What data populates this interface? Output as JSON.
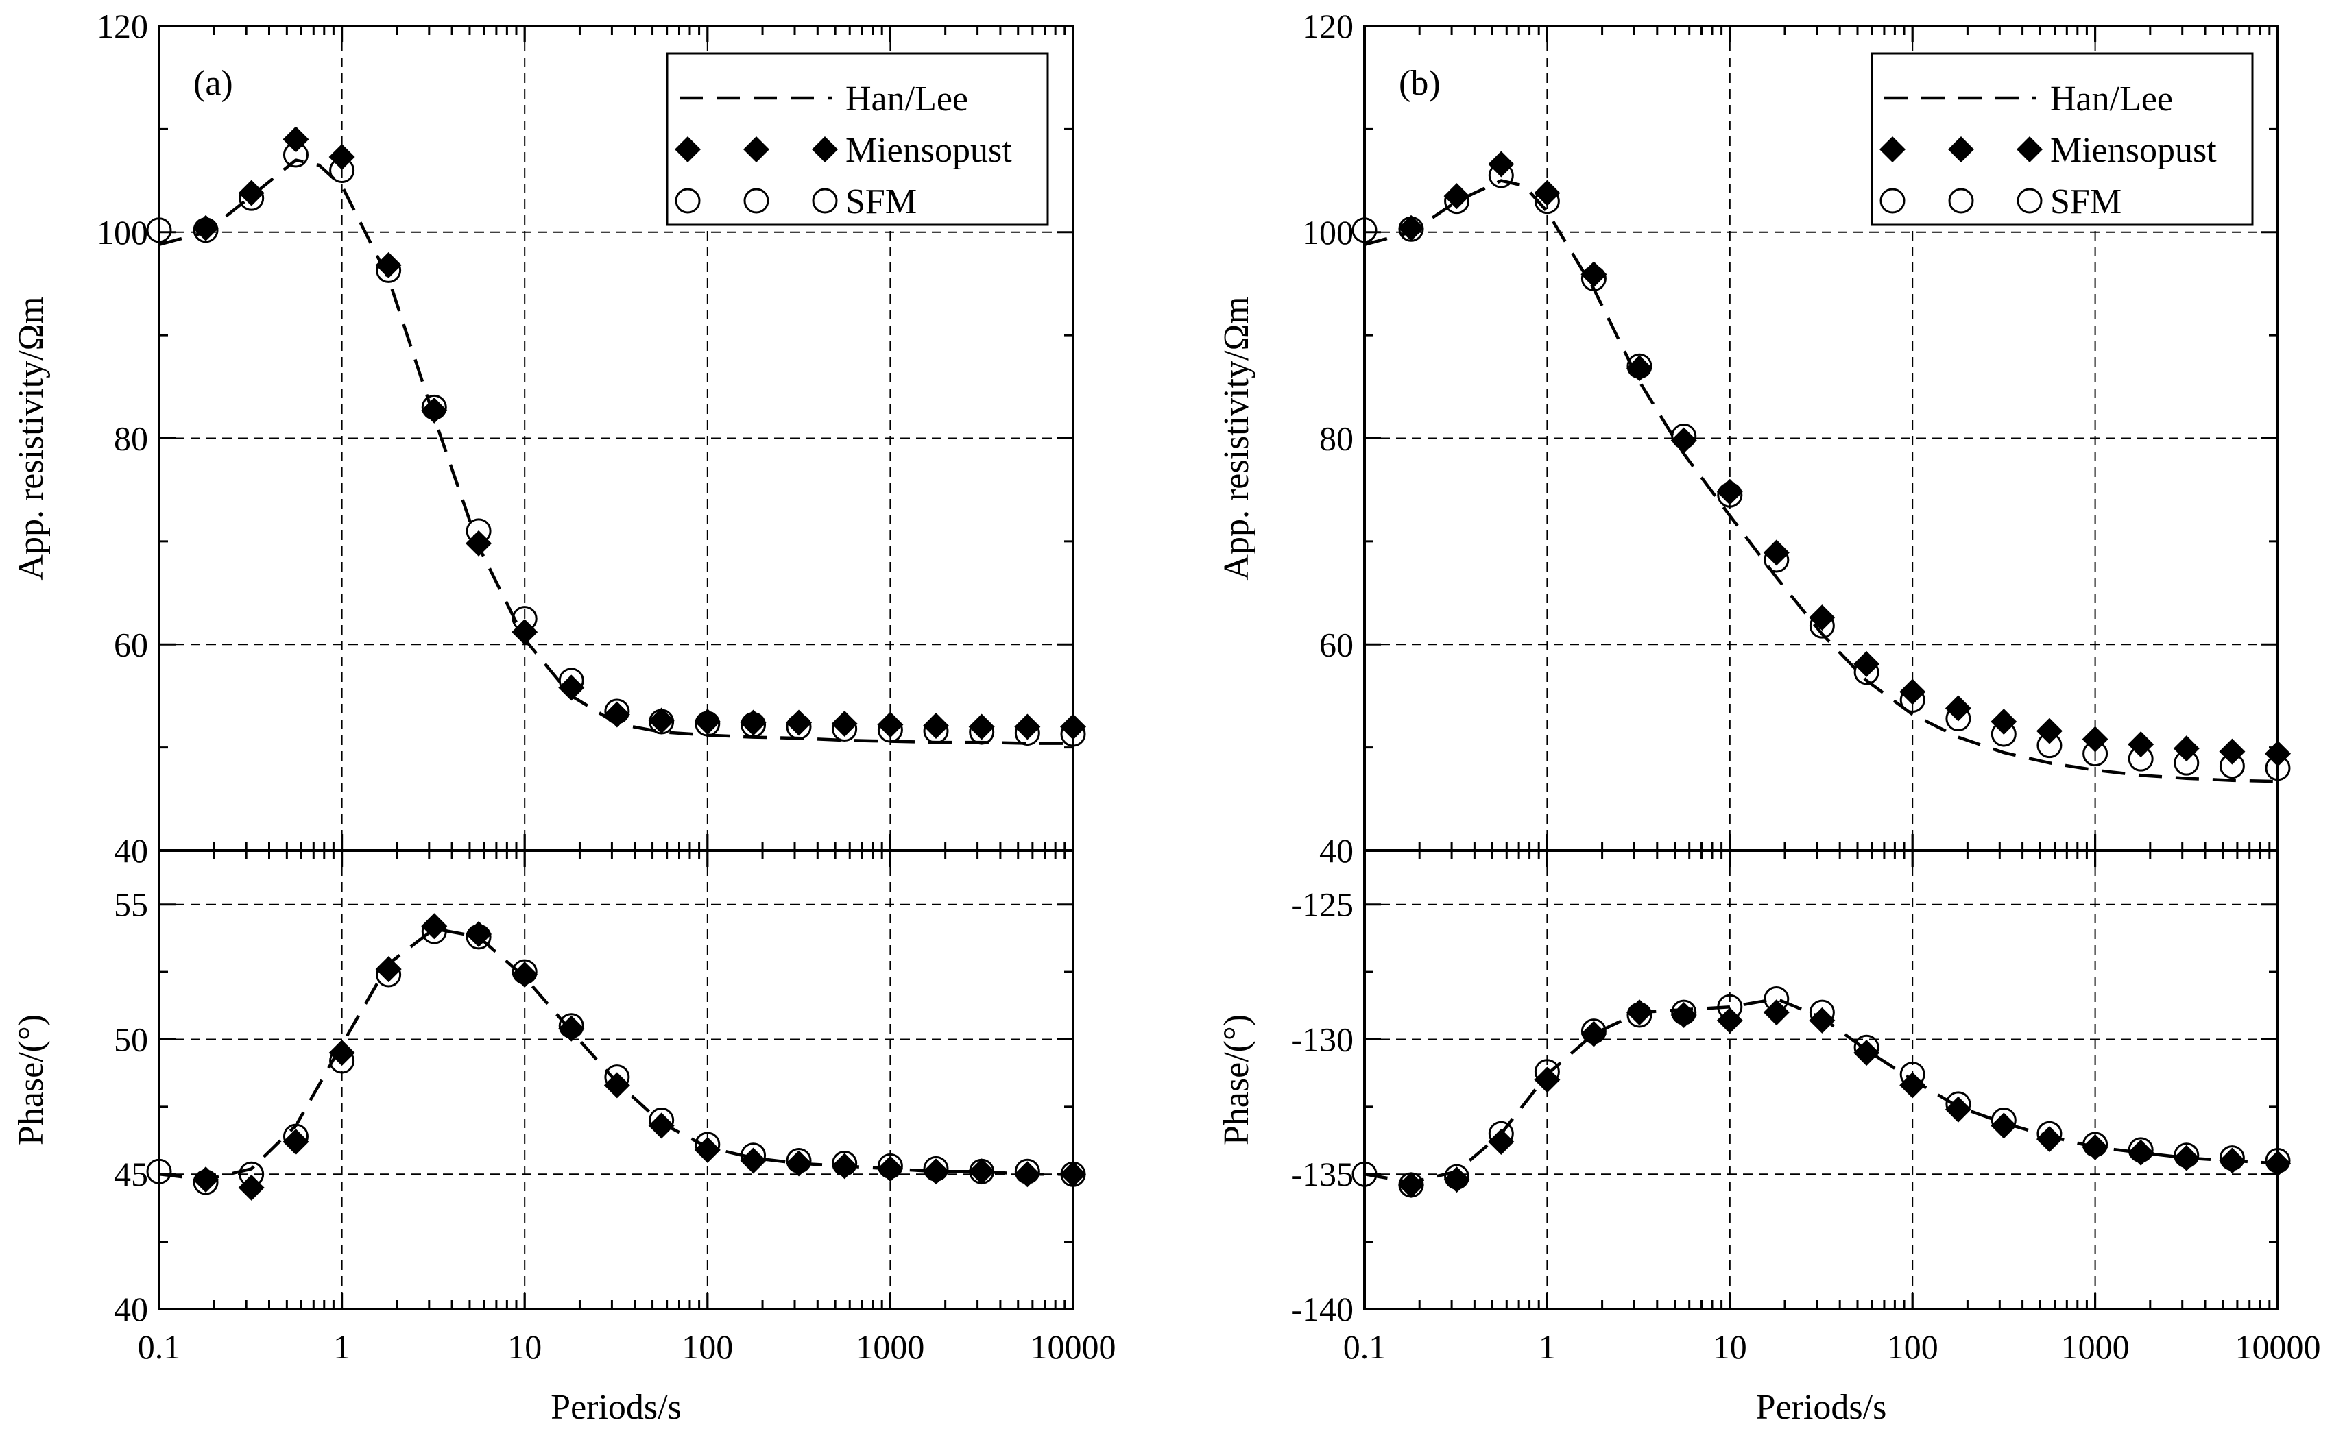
{
  "chart_data": [
    {
      "panel_label": "(a)",
      "type": "line",
      "x_scale": "log",
      "xlabel": "Periods/s",
      "x_tick_labels": [
        "0.1",
        "1",
        "10",
        "100",
        "1000",
        "10000"
      ],
      "x_tick_values": [
        0.1,
        1,
        10,
        100,
        1000,
        10000
      ],
      "xlim": [
        0.1,
        10000
      ],
      "legend": {
        "position": "top-right",
        "entries": [
          "Han/Lee",
          "Miensopust",
          "SFM"
        ]
      },
      "resistivity": {
        "ylabel": "App. resistivity/Ωm",
        "ylim": [
          40,
          120
        ],
        "y_tick_labels": [
          "40",
          "60",
          "80",
          "100",
          "120"
        ],
        "y_tick_values": [
          40,
          60,
          80,
          100,
          120
        ],
        "series": [
          {
            "name": "Han/Lee",
            "style": "dashed-line",
            "x": [
              0.1,
              0.18,
              0.32,
              0.56,
              0.75,
              1,
              1.8,
              3.2,
              5.6,
              10,
              18,
              32,
              56,
              100,
              178,
              316,
              562,
              1000,
              1778,
              3162,
              5623,
              10000
            ],
            "y": [
              98.8,
              100.0,
              103.5,
              107.0,
              106.5,
              104.5,
              95.5,
              82.0,
              69.5,
              60.5,
              55.0,
              52.3,
              51.5,
              51.2,
              51.0,
              50.9,
              50.7,
              50.6,
              50.5,
              50.5,
              50.4,
              50.4
            ]
          },
          {
            "name": "Miensopust",
            "style": "filled-diamond",
            "x": [
              0.18,
              0.32,
              0.56,
              1,
              1.8,
              3.2,
              5.6,
              10,
              18,
              32,
              56,
              100,
              178,
              316,
              562,
              1000,
              1778,
              3162,
              5623,
              10000
            ],
            "y": [
              100.4,
              103.8,
              109.0,
              107.3,
              96.8,
              82.7,
              69.8,
              61.2,
              55.8,
              53.2,
              52.6,
              52.5,
              52.4,
              52.4,
              52.3,
              52.2,
              52.1,
              52.0,
              52.0,
              52.0
            ]
          },
          {
            "name": "SFM",
            "style": "open-circle",
            "x": [
              0.1,
              0.18,
              0.32,
              0.56,
              1,
              1.8,
              3.2,
              5.6,
              10,
              18,
              32,
              56,
              100,
              178,
              316,
              562,
              1000,
              1778,
              3162,
              5623,
              10000
            ],
            "y": [
              100.2,
              100.2,
              103.3,
              107.5,
              106.0,
              96.3,
              83.0,
              71.0,
              62.5,
              56.5,
              53.5,
              52.5,
              52.3,
              52.2,
              52.0,
              51.8,
              51.7,
              51.6,
              51.5,
              51.4,
              51.3
            ]
          }
        ]
      },
      "phase": {
        "ylabel": "Phase/(°)",
        "ylim": [
          40,
          57
        ],
        "y_tick_labels": [
          "40",
          "45",
          "50",
          "55"
        ],
        "y_tick_values": [
          40,
          45,
          50,
          55
        ],
        "series": [
          {
            "name": "Han/Lee",
            "style": "dashed-line",
            "x": [
              0.1,
              0.18,
              0.32,
              0.56,
              1,
              1.8,
              3.2,
              5.6,
              10,
              18,
              32,
              56,
              100,
              178,
              316,
              562,
              1000,
              1778,
              3162,
              5623,
              10000
            ],
            "y": [
              45.0,
              44.8,
              45.2,
              46.8,
              49.8,
              52.8,
              54.1,
              53.8,
              52.3,
              50.3,
              48.4,
              46.9,
              46.0,
              45.6,
              45.4,
              45.3,
              45.2,
              45.1,
              45.1,
              45.0,
              45.0
            ]
          },
          {
            "name": "Miensopust",
            "style": "filled-diamond",
            "x": [
              0.18,
              0.32,
              0.56,
              1,
              1.8,
              3.2,
              5.6,
              10,
              18,
              32,
              56,
              100,
              178,
              316,
              562,
              1000,
              1778,
              3162,
              5623,
              10000
            ],
            "y": [
              44.8,
              44.5,
              46.2,
              49.5,
              52.6,
              54.2,
              53.9,
              52.4,
              50.4,
              48.3,
              46.8,
              45.9,
              45.5,
              45.4,
              45.3,
              45.2,
              45.1,
              45.1,
              45.0,
              45.0
            ]
          },
          {
            "name": "SFM",
            "style": "open-circle",
            "x": [
              0.1,
              0.18,
              0.32,
              0.56,
              1,
              1.8,
              3.2,
              5.6,
              10,
              18,
              32,
              56,
              100,
              178,
              316,
              562,
              1000,
              1778,
              3162,
              5623,
              10000
            ],
            "y": [
              45.1,
              44.7,
              45.0,
              46.4,
              49.2,
              52.4,
              54.0,
              53.8,
              52.5,
              50.5,
              48.6,
              47.0,
              46.1,
              45.7,
              45.5,
              45.4,
              45.3,
              45.2,
              45.1,
              45.1,
              45.0
            ]
          }
        ]
      }
    },
    {
      "panel_label": "(b)",
      "type": "line",
      "x_scale": "log",
      "xlabel": "Periods/s",
      "x_tick_labels": [
        "0.1",
        "1",
        "10",
        "100",
        "1000",
        "10000"
      ],
      "x_tick_values": [
        0.1,
        1,
        10,
        100,
        1000,
        10000
      ],
      "xlim": [
        0.1,
        10000
      ],
      "legend": {
        "position": "top-right",
        "entries": [
          "Han/Lee",
          "Miensopust",
          "SFM"
        ]
      },
      "resistivity": {
        "ylabel": "App. resistivity/Ωm",
        "ylim": [
          40,
          120
        ],
        "y_tick_labels": [
          "40",
          "60",
          "80",
          "100",
          "120"
        ],
        "y_tick_values": [
          40,
          60,
          80,
          100,
          120
        ],
        "series": [
          {
            "name": "Han/Lee",
            "style": "dashed-line",
            "x": [
              0.1,
              0.18,
              0.32,
              0.56,
              0.75,
              1,
              1.8,
              3.2,
              5.6,
              10,
              18,
              32,
              56,
              100,
              178,
              316,
              562,
              1000,
              1778,
              3162,
              5623,
              10000
            ],
            "y": [
              98.8,
              100.0,
              103.0,
              105.0,
              104.5,
              102.0,
              94.5,
              85.5,
              78.5,
              72.5,
              66.5,
              61.0,
              56.5,
              53.2,
              51.0,
              49.5,
              48.5,
              47.8,
              47.3,
              47.0,
              46.8,
              46.7
            ]
          },
          {
            "name": "Miensopust",
            "style": "filled-diamond",
            "x": [
              0.18,
              0.32,
              0.56,
              1,
              1.8,
              3.2,
              5.6,
              10,
              18,
              32,
              56,
              100,
              178,
              316,
              562,
              1000,
              1778,
              3162,
              5623,
              10000
            ],
            "y": [
              100.4,
              103.5,
              106.6,
              103.8,
              95.9,
              86.8,
              79.8,
              74.8,
              68.9,
              62.6,
              58.1,
              55.4,
              53.8,
              52.5,
              51.6,
              50.8,
              50.3,
              49.9,
              49.6,
              49.4
            ]
          },
          {
            "name": "SFM",
            "style": "open-circle",
            "x": [
              0.1,
              0.18,
              0.32,
              0.56,
              1,
              1.8,
              3.2,
              5.6,
              10,
              18,
              32,
              56,
              100,
              178,
              316,
              562,
              1000,
              1778,
              3162,
              5623,
              10000
            ],
            "y": [
              100.2,
              100.3,
              103.0,
              105.5,
              103.0,
              95.5,
              87.0,
              80.2,
              74.5,
              68.2,
              61.8,
              57.3,
              54.6,
              52.8,
              51.3,
              50.2,
              49.4,
              48.9,
              48.5,
              48.2,
              48.0
            ]
          }
        ]
      },
      "phase": {
        "ylabel": "Phase/(°)",
        "ylim": [
          -140,
          -123
        ],
        "y_tick_labels": [
          "-140",
          "-135",
          "-130",
          "-125"
        ],
        "y_tick_values": [
          -140,
          -135,
          -130,
          -125
        ],
        "series": [
          {
            "name": "Han/Lee",
            "style": "dashed-line",
            "x": [
              0.1,
              0.18,
              0.32,
              0.56,
              1,
              1.8,
              3.2,
              5.6,
              10,
              18,
              32,
              56,
              100,
              178,
              316,
              562,
              1000,
              1778,
              3162,
              5623,
              10000
            ],
            "y": [
              -135.0,
              -135.3,
              -134.9,
              -133.5,
              -131.3,
              -129.8,
              -129.0,
              -128.9,
              -128.8,
              -128.5,
              -129.2,
              -130.4,
              -131.5,
              -132.5,
              -133.1,
              -133.6,
              -134.0,
              -134.2,
              -134.4,
              -134.5,
              -134.6
            ]
          },
          {
            "name": "Miensopust",
            "style": "filled-diamond",
            "x": [
              0.18,
              0.32,
              0.56,
              1,
              1.8,
              3.2,
              5.6,
              10,
              18,
              32,
              56,
              100,
              178,
              316,
              562,
              1000,
              1778,
              3162,
              5623,
              10000
            ],
            "y": [
              -135.4,
              -135.2,
              -133.8,
              -131.5,
              -129.8,
              -129.0,
              -129.1,
              -129.3,
              -129.0,
              -129.3,
              -130.5,
              -131.7,
              -132.6,
              -133.2,
              -133.7,
              -134.0,
              -134.2,
              -134.4,
              -134.5,
              -134.6
            ]
          },
          {
            "name": "SFM",
            "style": "open-circle",
            "x": [
              0.1,
              0.18,
              0.32,
              0.56,
              1,
              1.8,
              3.2,
              5.6,
              10,
              18,
              32,
              56,
              100,
              178,
              316,
              562,
              1000,
              1778,
              3162,
              5623,
              10000
            ],
            "y": [
              -135.0,
              -135.4,
              -135.1,
              -133.5,
              -131.2,
              -129.7,
              -129.1,
              -129.0,
              -128.8,
              -128.5,
              -129.0,
              -130.3,
              -131.3,
              -132.4,
              -133.0,
              -133.5,
              -133.9,
              -134.1,
              -134.3,
              -134.4,
              -134.5
            ]
          }
        ]
      }
    }
  ]
}
